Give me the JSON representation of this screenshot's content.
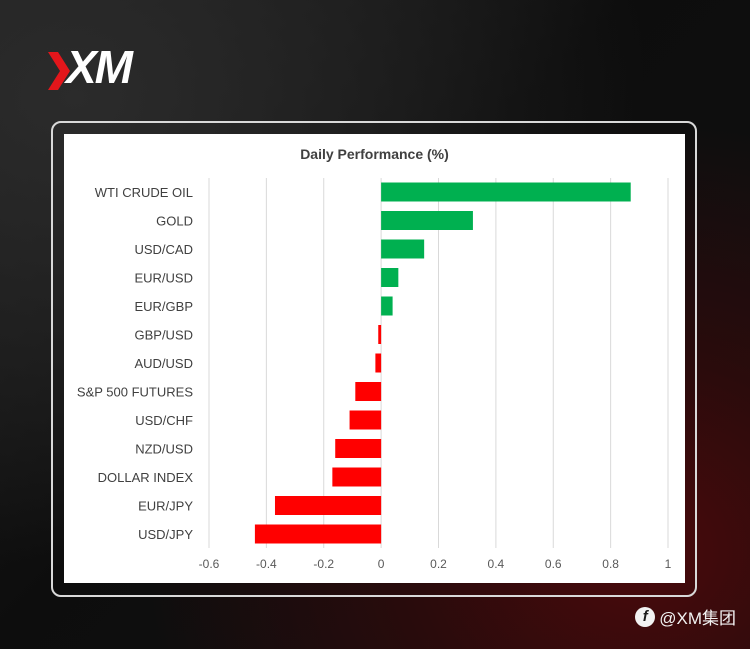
{
  "brand": {
    "logo_text": "XM",
    "accent_color": "#e3161b"
  },
  "watermark": {
    "text": "@XM集团",
    "icon": "weibo-icon"
  },
  "chart_data": {
    "type": "bar",
    "orientation": "horizontal",
    "title": "Daily Performance (%)",
    "categories": [
      "WTI CRUDE OIL",
      "GOLD",
      "USD/CAD",
      "EUR/USD",
      "EUR/GBP",
      "GBP/USD",
      "AUD/USD",
      "S&P 500 FUTURES",
      "USD/CHF",
      "NZD/USD",
      "DOLLAR INDEX",
      "EUR/JPY",
      "USD/JPY"
    ],
    "values": [
      0.87,
      0.32,
      0.15,
      0.06,
      0.04,
      -0.01,
      -0.02,
      -0.09,
      -0.11,
      -0.16,
      -0.17,
      -0.37,
      -0.44
    ],
    "xlim": [
      -0.6,
      1
    ],
    "xticks": [
      "-0.6",
      "-0.4",
      "-0.2",
      "0",
      "0.2",
      "0.4",
      "0.6",
      "0.8",
      "1"
    ],
    "xtick_values": [
      -0.6,
      -0.4,
      -0.2,
      0,
      0.2,
      0.4,
      0.6,
      0.8,
      1
    ],
    "grid": "vertical",
    "positive_color": "#00b050",
    "negative_color": "#ff0000"
  }
}
